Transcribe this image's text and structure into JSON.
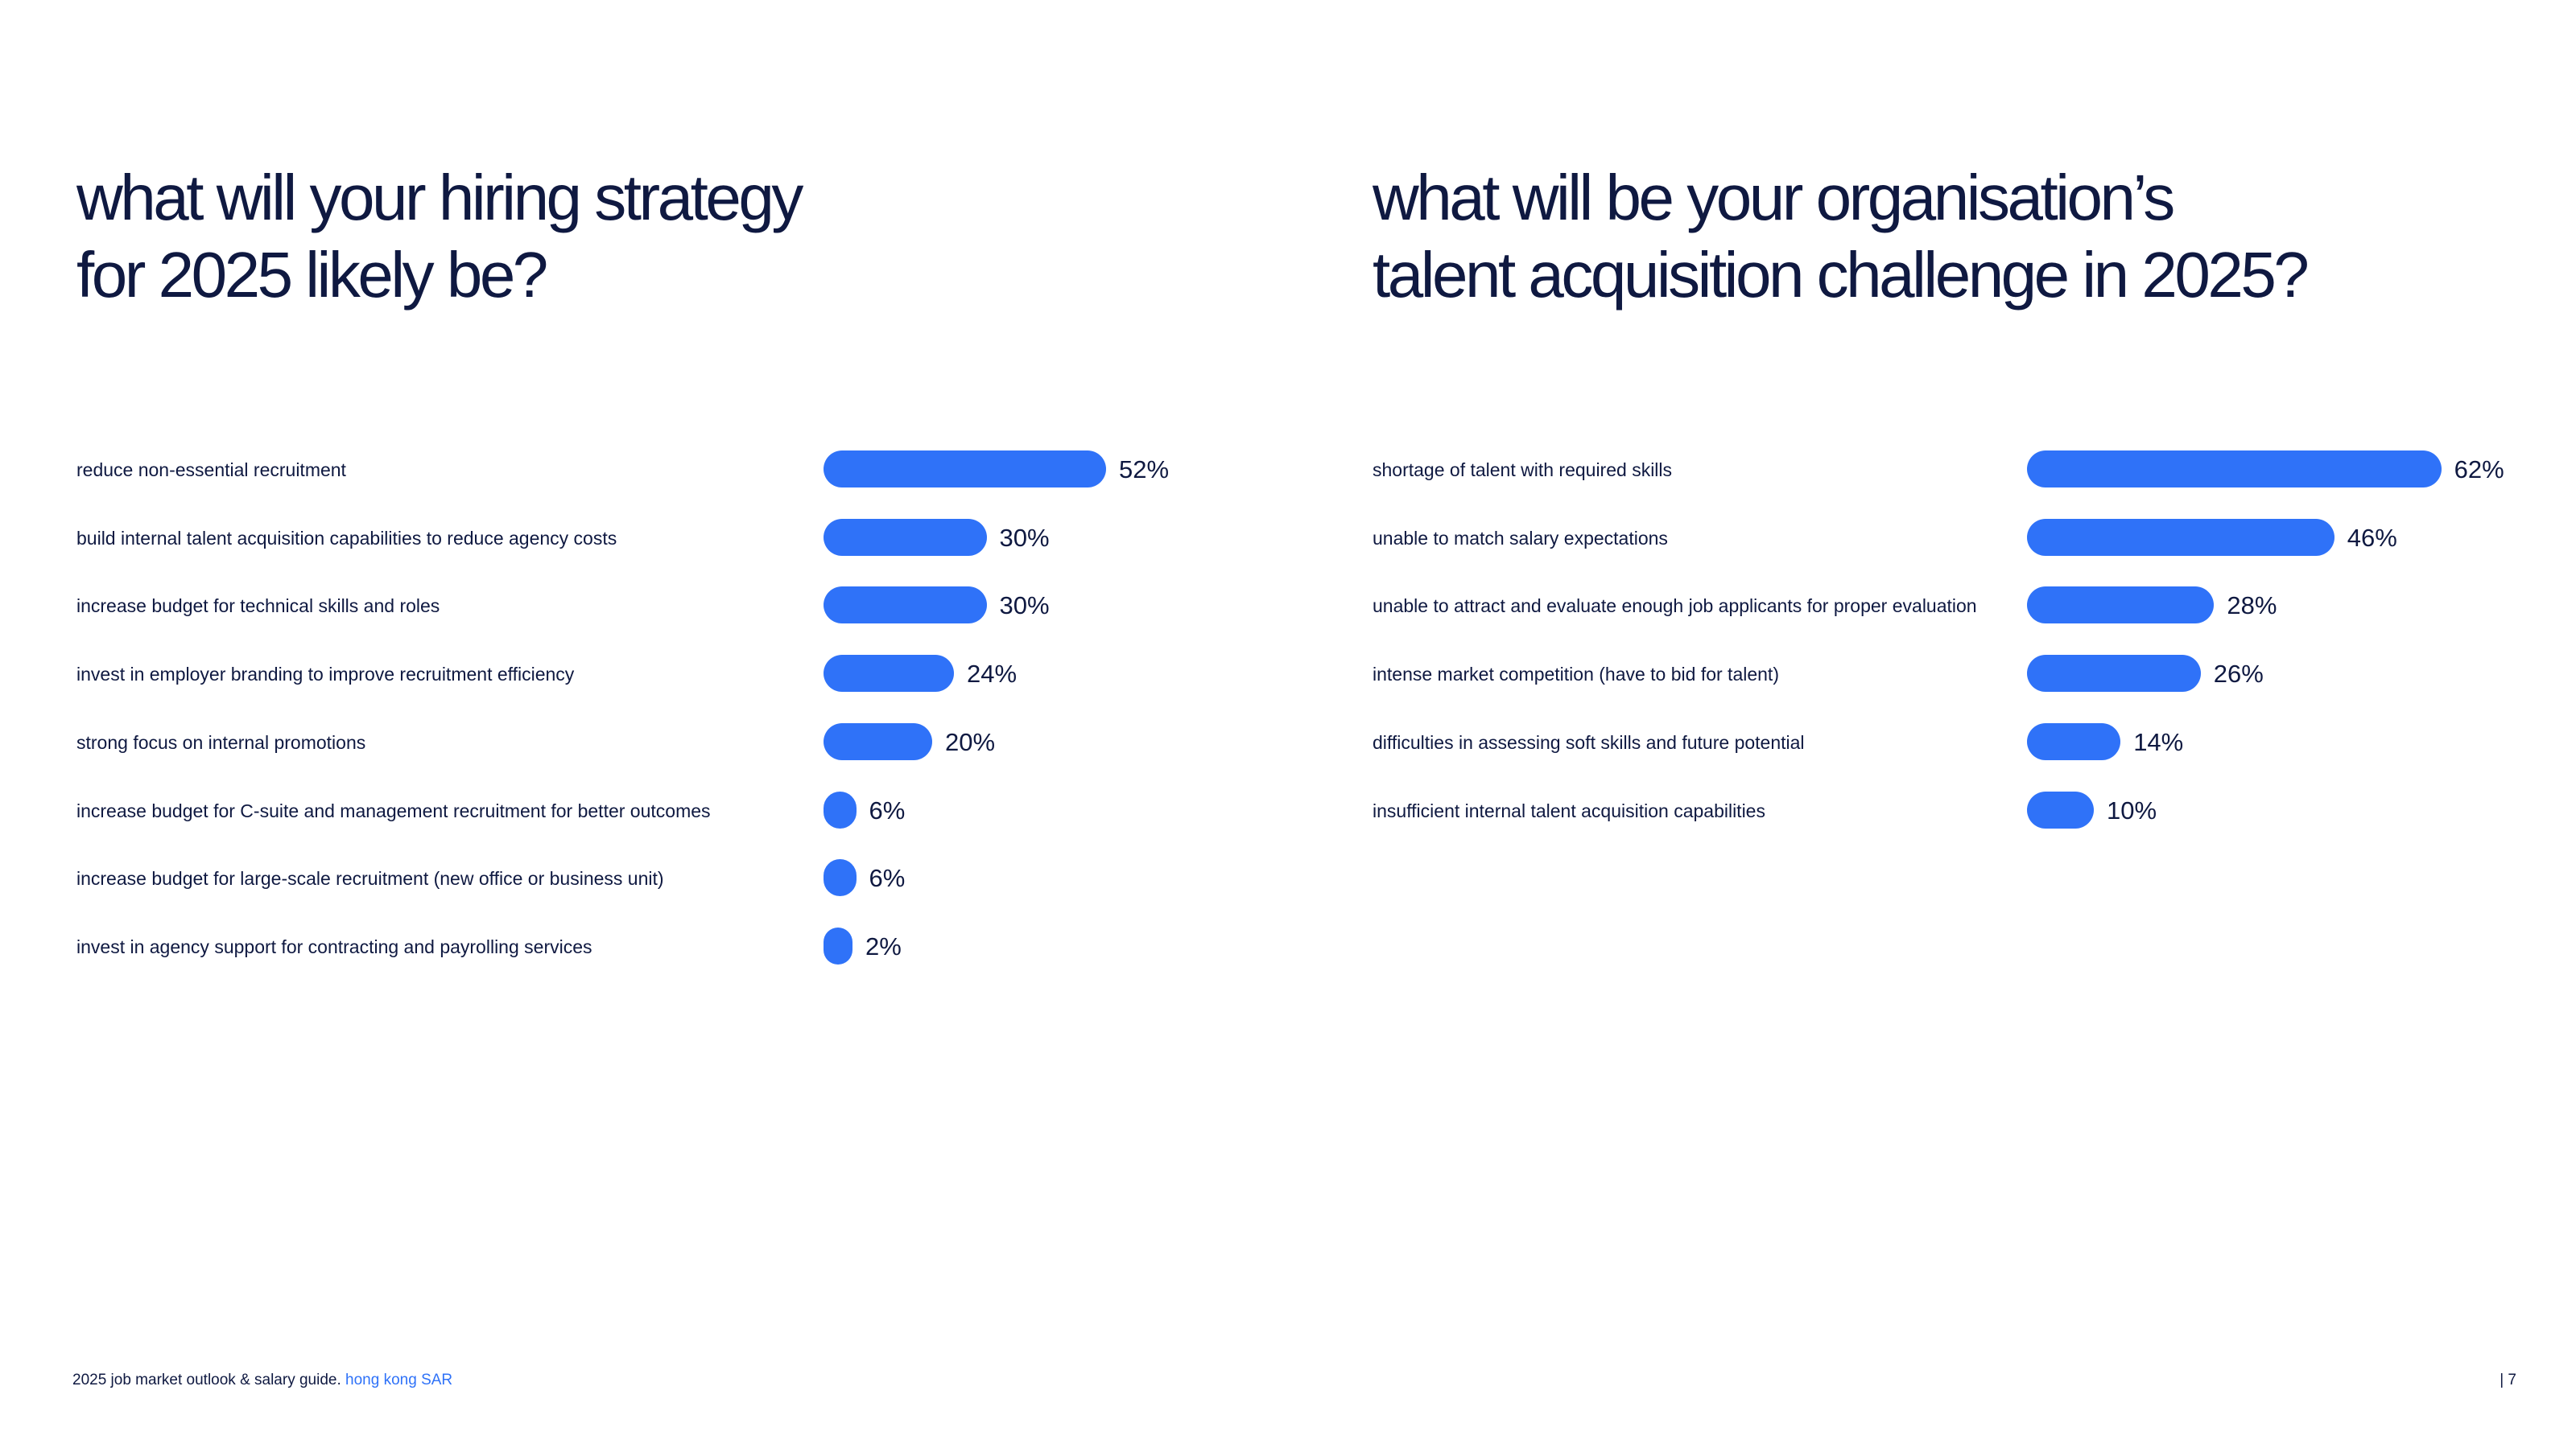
{
  "chart_data": [
    {
      "type": "bar",
      "orientation": "horizontal",
      "title_lines": [
        "what will your hiring strategy",
        "for 2025 likely be?"
      ],
      "categories": [
        "reduce non-essential recruitment",
        "build internal talent acquisition capabilities to reduce agency costs",
        "increase budget for technical skills and roles",
        "invest in employer branding to improve recruitment efficiency",
        "strong focus on internal promotions",
        "increase budget for C-suite and management recruitment for better outcomes",
        "increase budget for large-scale recruitment (new office or business unit)",
        "invest in agency support for contracting and payrolling services"
      ],
      "values": [
        52,
        30,
        30,
        24,
        20,
        6,
        6,
        2
      ],
      "value_labels": [
        "52%",
        "30%",
        "30%",
        "24%",
        "20%",
        "6%",
        "6%",
        "2%"
      ],
      "unit": "%",
      "grid": false,
      "bar_color": "#2f72f8"
    },
    {
      "type": "bar",
      "orientation": "horizontal",
      "title_lines": [
        "what will be your organisation’s",
        "talent acquisition challenge in 2025?"
      ],
      "categories": [
        "shortage of talent with required skills",
        "unable to match salary expectations",
        "unable to attract and evaluate enough job applicants for proper evaluation",
        "intense market competition (have to bid for talent)",
        "difficulties in assessing soft skills and future potential",
        "insufficient internal talent acquisition capabilities"
      ],
      "values": [
        62,
        46,
        28,
        26,
        14,
        10
      ],
      "value_labels": [
        "62%",
        "46%",
        "28%",
        "26%",
        "14%",
        "10%"
      ],
      "unit": "%",
      "grid": false,
      "bar_color": "#2f72f8"
    }
  ],
  "footer": {
    "text": "2025 job market outlook & salary guide.",
    "region": "hong kong SAR",
    "page": "| 7"
  },
  "colors": {
    "text": "#0f1941",
    "accent": "#2f72f8",
    "background": "#ffffff"
  }
}
